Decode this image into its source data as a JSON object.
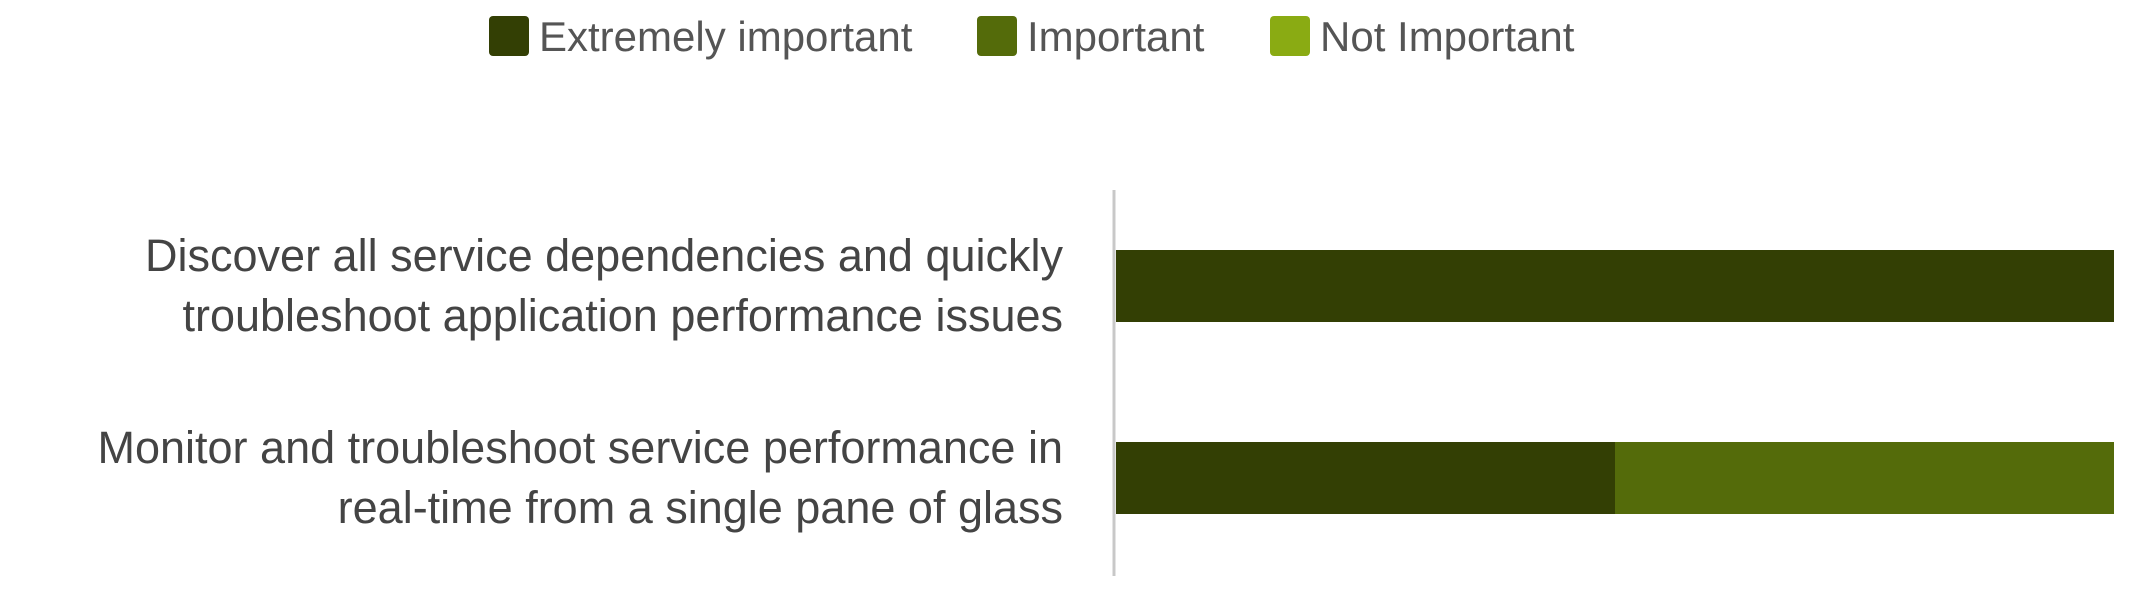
{
  "chart_data": {
    "type": "stacked-barh",
    "categories": [
      "Discover all service dependencies and quickly\ntroubleshoot application performance issues",
      "Monitor and troubleshoot service performance in\nreal-time from a single pane of glass"
    ],
    "series": [
      {
        "name": "Extremely important",
        "color": "#333f04",
        "values": [
          100,
          50
        ]
      },
      {
        "name": "Important",
        "color": "#546b0a",
        "values": [
          0,
          50
        ]
      },
      {
        "name": "Not Important",
        "color": "#8aab13",
        "values": [
          0,
          0
        ]
      }
    ],
    "xlim": [
      0,
      100
    ],
    "legend": "top"
  }
}
